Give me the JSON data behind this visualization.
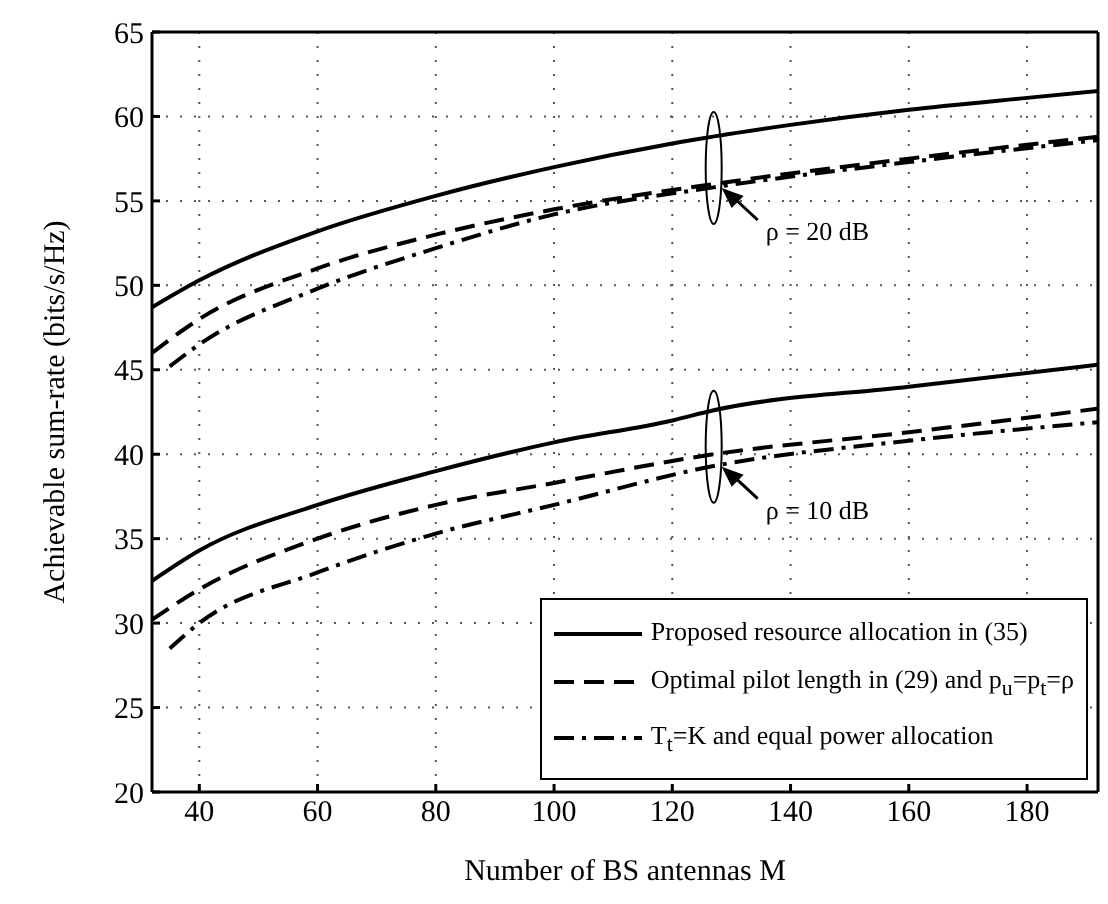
{
  "chart_data": {
    "type": "line",
    "xlabel": "Number of BS antennas M",
    "ylabel": "Achievable sum-rate (bits/s/Hz)",
    "xlim": [
      32,
      192
    ],
    "xticks": [
      40,
      60,
      80,
      100,
      120,
      140,
      160,
      180
    ],
    "ylim": [
      20,
      65
    ],
    "yticks": [
      20,
      25,
      30,
      35,
      40,
      45,
      50,
      55,
      60,
      65
    ],
    "grid": true,
    "legend": "bottom right",
    "marker": "none",
    "series": [
      {
        "name": "Proposed resource allocation in (35)",
        "color": "#000000",
        "line_style": "solid",
        "x": [
          32,
          40,
          60,
          80,
          100,
          120,
          140,
          160,
          180,
          192
        ],
        "values": [
          48.7,
          50.3,
          53.2,
          55.3,
          57,
          58.4,
          59.5,
          60.4,
          61.1,
          61.5
        ]
      },
      {
        "name": "Optimal pilot length in (29) and p$_{u}$=p$_{t}$=ρ",
        "color": "#000000",
        "line_style": "dashed",
        "x": [
          32,
          40,
          60,
          80,
          100,
          127,
          160,
          192
        ],
        "values": [
          46,
          48,
          51,
          53,
          54.5,
          56,
          57.5,
          58.8
        ]
      },
      {
        "name": "T$_{t}$=K and equal power allocation",
        "color": "#000000",
        "line_style": "dashdot",
        "x": [
          35,
          40,
          60,
          80,
          100,
          127,
          160,
          192
        ],
        "values": [
          45.2,
          46.5,
          49.8,
          52.2,
          54.2,
          55.8,
          57.3,
          58.6
        ]
      },
      {
        "color": "#000000",
        "line_style": "solid",
        "x": [
          32,
          40,
          60,
          80,
          100,
          120,
          127,
          160,
          192
        ],
        "values": [
          32.5,
          34.3,
          37,
          39,
          40.7,
          42,
          42.6,
          44,
          45.3
        ]
      },
      {
        "color": "#000000",
        "line_style": "dashed",
        "x": [
          32,
          40,
          60,
          80,
          100,
          127,
          160,
          192
        ],
        "values": [
          30.2,
          32,
          35,
          37,
          38.3,
          40,
          41.3,
          42.7
        ]
      },
      {
        "color": "#000000",
        "line_style": "dashdot",
        "x": [
          35,
          40,
          60,
          80,
          100,
          127,
          160,
          192
        ],
        "values": [
          28.5,
          30,
          33,
          35.3,
          37,
          39.3,
          40.8,
          41.9
        ]
      }
    ],
    "annotations": [
      {
        "text": "ρ = 20 dB",
        "x": 127,
        "y": 56
      },
      {
        "text": "ρ = 10 dB",
        "x": 127,
        "y": 39.5
      }
    ]
  }
}
